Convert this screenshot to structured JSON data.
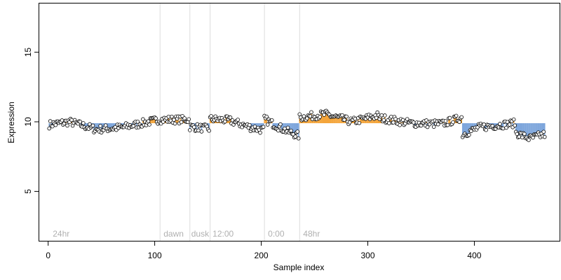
{
  "chart_data": {
    "type": "scatter",
    "title": "",
    "xlabel": "Sample index",
    "ylabel": "Expression",
    "xlim": [
      -9,
      480
    ],
    "ylim": [
      1.45,
      18.55
    ],
    "x_ticks": [
      0,
      100,
      200,
      300,
      400
    ],
    "y_ticks": [
      5,
      10,
      15
    ],
    "grid": false,
    "baseline": 9.9,
    "colors": {
      "above_baseline": "#f4a53b",
      "below_baseline": "#7ea6dc",
      "point_fill": "#ffffff",
      "point_stroke": "#000000",
      "divider": "#dcdcdc",
      "annotation": "#b0b0b0"
    },
    "dividers": [
      105,
      133,
      152,
      203,
      236
    ],
    "annotations": [
      {
        "x": 3,
        "text": "24hr"
      },
      {
        "x": 107,
        "text": "dawn"
      },
      {
        "x": 133,
        "text": "dusk"
      },
      {
        "x": 153,
        "text": "12:00"
      },
      {
        "x": 205,
        "text": "0:00"
      },
      {
        "x": 238,
        "text": "48hr"
      }
    ],
    "segments": [
      {
        "x0": 1,
        "x1": 104,
        "keys": [
          [
            1,
            9.8
          ],
          [
            20,
            10.0
          ],
          [
            45,
            9.45
          ],
          [
            70,
            9.6
          ],
          [
            104,
            10.15
          ]
        ]
      },
      {
        "x0": 105,
        "x1": 132,
        "keys": [
          [
            105,
            10.15
          ],
          [
            132,
            10.15
          ]
        ]
      },
      {
        "x0": 133,
        "x1": 151,
        "keys": [
          [
            133,
            9.65
          ],
          [
            151,
            9.5
          ]
        ]
      },
      {
        "x0": 152,
        "x1": 202,
        "keys": [
          [
            152,
            10.2
          ],
          [
            170,
            10.1
          ],
          [
            190,
            9.6
          ],
          [
            202,
            9.4
          ]
        ]
      },
      {
        "x0": 203,
        "x1": 235,
        "keys": [
          [
            203,
            10.2
          ],
          [
            212,
            9.8
          ],
          [
            225,
            9.3
          ],
          [
            235,
            9.0
          ]
        ]
      },
      {
        "x0": 236,
        "x1": 309,
        "keys": [
          [
            236,
            10.3
          ],
          [
            260,
            10.55
          ],
          [
            285,
            10.0
          ],
          [
            309,
            10.45
          ]
        ]
      },
      {
        "x0": 310,
        "x1": 388,
        "keys": [
          [
            310,
            10.3
          ],
          [
            340,
            9.9
          ],
          [
            370,
            9.85
          ],
          [
            388,
            10.3
          ]
        ]
      },
      {
        "x0": 389,
        "x1": 438,
        "keys": [
          [
            389,
            9.1
          ],
          [
            405,
            9.6
          ],
          [
            438,
            9.9
          ]
        ]
      },
      {
        "x0": 439,
        "x1": 466,
        "keys": [
          [
            439,
            9.2
          ],
          [
            452,
            8.8
          ],
          [
            466,
            9.1
          ]
        ]
      }
    ],
    "noise_amplitude": 0.28
  }
}
